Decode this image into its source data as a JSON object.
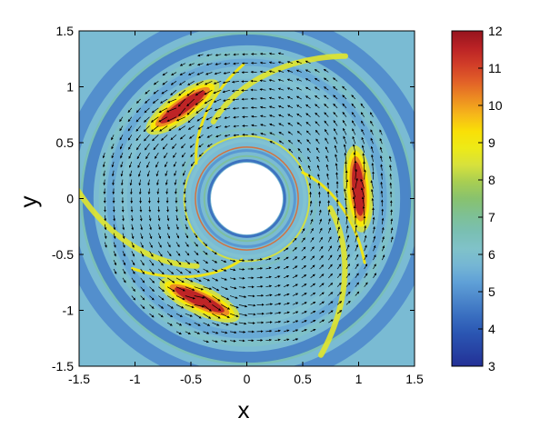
{
  "chart_data": {
    "type": "heatmap",
    "title": "",
    "xlabel": "x",
    "ylabel": "y",
    "xlim": [
      -1.5,
      1.5
    ],
    "ylim": [
      -1.5,
      1.5
    ],
    "x_ticks": [
      "-1.5",
      "-1",
      "-0.5",
      "0",
      "0.5",
      "1",
      "1.5"
    ],
    "y_ticks": [
      "-1.5",
      "-1",
      "-0.5",
      "0",
      "0.5",
      "1",
      "1.5"
    ],
    "x_tick_values": [
      -1.5,
      -1,
      -0.5,
      0,
      0.5,
      1,
      1.5
    ],
    "y_tick_values": [
      -1.5,
      -1,
      -0.5,
      0,
      0.5,
      1,
      1.5
    ],
    "colorbar": {
      "range": [
        3,
        12
      ],
      "tick_values": [
        3,
        4,
        5,
        6,
        7,
        8,
        9,
        10,
        11,
        12
      ],
      "tick_labels": [
        "3",
        "4",
        "5",
        "6",
        "7",
        "8",
        "9",
        "10",
        "11",
        "12"
      ],
      "colormap": "jet"
    },
    "disk": {
      "inner_radius": 0.3,
      "outer_radius": 1.5,
      "background_value": 5.8
    },
    "vortices": [
      {
        "center_radius": 1.0,
        "center_angle_deg": 125,
        "peak_value": 11.5
      },
      {
        "center_radius": 1.0,
        "center_angle_deg": 5,
        "peak_value": 11.5
      },
      {
        "center_radius": 1.0,
        "center_angle_deg": 245,
        "peak_value": 11.5
      }
    ],
    "vector_field": {
      "description": "velocity arrows",
      "r_range": [
        0.55,
        1.35
      ],
      "rotation": "counterclockwise"
    }
  }
}
